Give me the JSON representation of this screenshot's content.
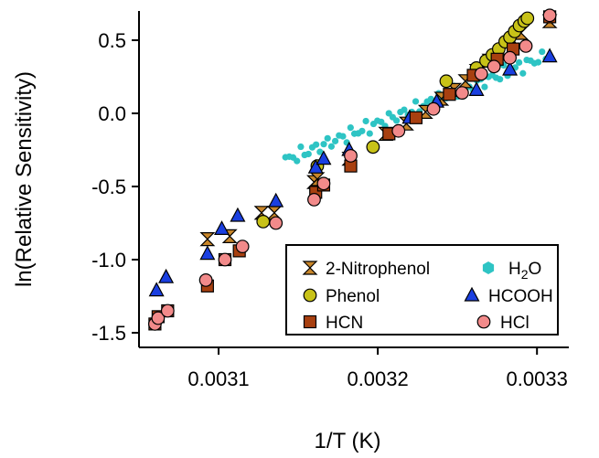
{
  "chart_data": {
    "type": "scatter",
    "xlabel": "1/T (K)",
    "ylabel": "ln(Relative Sensitivity)",
    "xlim": [
      0.00305,
      0.00332
    ],
    "ylim": [
      -1.6,
      0.7
    ],
    "xticks": [
      {
        "value": 0.0031,
        "label": "0.0031"
      },
      {
        "value": 0.0032,
        "label": "0.0032"
      },
      {
        "value": 0.0033,
        "label": "0.0033"
      }
    ],
    "yticks": [
      {
        "value": 0.5,
        "label": "0.5"
      },
      {
        "value": 0.0,
        "label": "0.0"
      },
      {
        "value": -0.5,
        "label": "-0.5"
      },
      {
        "value": -1.0,
        "label": "-1.0"
      },
      {
        "value": -1.5,
        "label": "-1.5"
      }
    ],
    "grid": false,
    "legend_position": "bottom-right",
    "series": [
      {
        "name": "2-Nitrophenol",
        "legend_label": "2-Nitrophenol",
        "marker": "hourglass",
        "color": "#c8862a",
        "x": [
          0.003093,
          0.003107,
          0.003127,
          0.003135,
          0.00316,
          0.003162,
          0.003182,
          0.003205,
          0.003218,
          0.00323,
          0.00324,
          0.003248,
          0.003255,
          0.003262,
          0.00327,
          0.003278,
          0.003285,
          0.00329,
          0.003308
        ],
        "y": [
          -0.86,
          -0.84,
          -0.68,
          -0.68,
          -0.47,
          -0.45,
          -0.31,
          -0.14,
          -0.07,
          0.01,
          0.1,
          0.16,
          0.22,
          0.29,
          0.36,
          0.42,
          0.5,
          0.55,
          0.63
        ]
      },
      {
        "name": "H2O",
        "legend_label": "H",
        "legend_sub": "2",
        "legend_suffix": "O",
        "marker": "dots",
        "color": "#2ec4c4",
        "x_start": 0.003142,
        "x_end": 0.003308,
        "y_start": -0.32,
        "y_end": 0.4,
        "count": 70
      },
      {
        "name": "Phenol",
        "legend_label": "Phenol",
        "marker": "circle",
        "color": "#c8c218",
        "x": [
          0.003128,
          0.003162,
          0.003197,
          0.003243,
          0.003262,
          0.003268,
          0.003272,
          0.003276,
          0.00328,
          0.003283,
          0.003286,
          0.003289,
          0.003292,
          0.003294
        ],
        "y": [
          -0.74,
          -0.36,
          -0.23,
          0.22,
          0.31,
          0.36,
          0.4,
          0.44,
          0.49,
          0.52,
          0.56,
          0.6,
          0.63,
          0.65
        ]
      },
      {
        "name": "HCOOH",
        "legend_label": "HCOOH",
        "marker": "triangle",
        "color": "#1a3fe0",
        "x": [
          0.003061,
          0.003067,
          0.003093,
          0.003102,
          0.003112,
          0.003136,
          0.003161,
          0.003166,
          0.003182,
          0.00322,
          0.003237,
          0.003262,
          0.003283,
          0.003308
        ],
        "y": [
          -1.21,
          -1.12,
          -0.96,
          -0.79,
          -0.7,
          -0.6,
          -0.37,
          -0.31,
          -0.25,
          -0.03,
          0.08,
          0.16,
          0.3,
          0.39
        ]
      },
      {
        "name": "HCN",
        "legend_label": "HCN",
        "marker": "square",
        "color": "#a84010",
        "x": [
          0.00306,
          0.003062,
          0.003068,
          0.003093,
          0.003104,
          0.003113,
          0.003161,
          0.003166,
          0.003183,
          0.003207,
          0.003224,
          0.003245,
          0.00326,
          0.003275,
          0.003285,
          0.003308
        ],
        "y": [
          -1.44,
          -1.39,
          -1.35,
          -1.18,
          -1.0,
          -0.94,
          -0.54,
          -0.49,
          -0.36,
          -0.14,
          -0.03,
          0.13,
          0.26,
          0.37,
          0.44,
          0.66
        ]
      },
      {
        "name": "HCl",
        "legend_label": "HCl",
        "marker": "circle",
        "color": "#f28a8a",
        "x": [
          0.00306,
          0.003062,
          0.003068,
          0.003092,
          0.003104,
          0.003115,
          0.003136,
          0.00316,
          0.003166,
          0.003183,
          0.003213,
          0.003235,
          0.003253,
          0.003265,
          0.003273,
          0.003283,
          0.003293,
          0.003308
        ],
        "y": [
          -1.44,
          -1.4,
          -1.35,
          -1.14,
          -1.0,
          -0.91,
          -0.75,
          -0.59,
          -0.48,
          -0.29,
          -0.12,
          0.03,
          0.14,
          0.27,
          0.32,
          0.38,
          0.46,
          0.67
        ]
      }
    ]
  }
}
